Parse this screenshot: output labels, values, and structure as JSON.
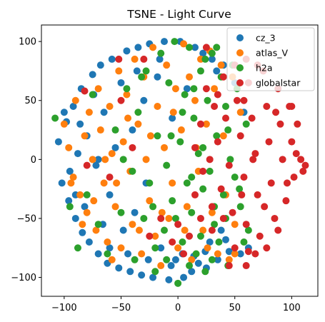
{
  "chart_data": {
    "type": "scatter",
    "title": "TSNE - Light Curve",
    "xlabel": "",
    "ylabel": "",
    "xlim": [
      -120,
      123
    ],
    "ylim": [
      -116,
      114
    ],
    "x_ticks": [
      -100,
      -50,
      0,
      50,
      100
    ],
    "y_ticks": [
      -100,
      -50,
      0,
      50,
      100
    ],
    "grid": false,
    "legend_position": "top-right",
    "series": [
      {
        "name": "cz_3",
        "color": "#1f77b4",
        "points": [
          [
            -105,
            15
          ],
          [
            -102,
            -20
          ],
          [
            -98,
            32
          ],
          [
            -96,
            -35
          ],
          [
            -92,
            45
          ],
          [
            -90,
            -50
          ],
          [
            -88,
            5
          ],
          [
            -85,
            60
          ],
          [
            -84,
            -62
          ],
          [
            -80,
            20
          ],
          [
            -78,
            -70
          ],
          [
            -75,
            72
          ],
          [
            -72,
            -5
          ],
          [
            -70,
            -80
          ],
          [
            -68,
            80
          ],
          [
            -65,
            40
          ],
          [
            -62,
            -88
          ],
          [
            -60,
            -30
          ],
          [
            -58,
            85
          ],
          [
            -55,
            10
          ],
          [
            -52,
            -92
          ],
          [
            -50,
            65
          ],
          [
            -48,
            -60
          ],
          [
            -45,
            92
          ],
          [
            -42,
            -95
          ],
          [
            -40,
            25
          ],
          [
            -38,
            -45
          ],
          [
            -35,
            95
          ],
          [
            -32,
            -98
          ],
          [
            -30,
            50
          ],
          [
            -28,
            -20
          ],
          [
            -25,
            98
          ],
          [
            -22,
            -100
          ],
          [
            -18,
            70
          ],
          [
            -15,
            -75
          ],
          [
            -12,
            100
          ],
          [
            -8,
            -102
          ],
          [
            -5,
            35
          ],
          [
            -2,
            -85
          ],
          [
            2,
            100
          ],
          [
            5,
            -100
          ],
          [
            8,
            60
          ],
          [
            12,
            -95
          ],
          [
            15,
            95
          ],
          [
            18,
            -88
          ],
          [
            22,
            90
          ],
          [
            25,
            -92
          ],
          [
            28,
            -70
          ],
          [
            30,
            85
          ],
          [
            35,
            -85
          ],
          [
            38,
            -60
          ],
          [
            40,
            80
          ],
          [
            45,
            -78
          ],
          [
            50,
            65
          ],
          [
            55,
            -80
          ],
          [
            58,
            40
          ],
          [
            62,
            -75
          ],
          [
            -95,
            -10
          ],
          [
            -86,
            30
          ],
          [
            -82,
            -40
          ],
          [
            -74,
            55
          ],
          [
            -66,
            -55
          ],
          [
            -44,
            -80
          ],
          [
            -36,
            75
          ],
          [
            -26,
            -85
          ],
          [
            -16,
            85
          ],
          [
            -6,
            -90
          ],
          [
            4,
            -80
          ],
          [
            14,
            -82
          ],
          [
            24,
            -78
          ],
          [
            34,
            75
          ],
          [
            42,
            -68
          ],
          [
            -100,
            40
          ],
          [
            -90,
            -30
          ],
          [
            -70,
            0
          ],
          [
            -60,
            -75
          ]
        ]
      },
      {
        "name": "atlas_V",
        "color": "#ff7f0e",
        "points": [
          [
            -100,
            30
          ],
          [
            -96,
            10
          ],
          [
            -92,
            -15
          ],
          [
            -90,
            50
          ],
          [
            -86,
            -30
          ],
          [
            -82,
            20
          ],
          [
            -80,
            -45
          ],
          [
            -78,
            40
          ],
          [
            -75,
            0
          ],
          [
            -72,
            -60
          ],
          [
            -70,
            60
          ],
          [
            -68,
            25
          ],
          [
            -65,
            -20
          ],
          [
            -62,
            -70
          ],
          [
            -60,
            45
          ],
          [
            -58,
            5
          ],
          [
            -55,
            -40
          ],
          [
            -52,
            75
          ],
          [
            -50,
            -75
          ],
          [
            -48,
            15
          ],
          [
            -45,
            55
          ],
          [
            -42,
            -10
          ],
          [
            -40,
            -55
          ],
          [
            -38,
            85
          ],
          [
            -35,
            30
          ],
          [
            -32,
            -80
          ],
          [
            -30,
            70
          ],
          [
            -28,
            0
          ],
          [
            -25,
            -35
          ],
          [
            -22,
            95
          ],
          [
            -20,
            -65
          ],
          [
            -18,
            45
          ],
          [
            -15,
            -90
          ],
          [
            -12,
            10
          ],
          [
            -10,
            80
          ],
          [
            -8,
            -50
          ],
          [
            -5,
            -20
          ],
          [
            -2,
            60
          ],
          [
            0,
            -75
          ],
          [
            3,
            25
          ],
          [
            5,
            98
          ],
          [
            8,
            -40
          ],
          [
            10,
            70
          ],
          [
            12,
            -85
          ],
          [
            15,
            50
          ],
          [
            18,
            -10
          ],
          [
            20,
            85
          ],
          [
            22,
            -60
          ],
          [
            25,
            30
          ],
          [
            28,
            92
          ],
          [
            30,
            -45
          ],
          [
            32,
            60
          ],
          [
            35,
            -80
          ],
          [
            38,
            80
          ],
          [
            40,
            20
          ],
          [
            42,
            -30
          ],
          [
            45,
            -85
          ],
          [
            48,
            70
          ],
          [
            50,
            -55
          ],
          [
            55,
            40
          ],
          [
            -84,
            -55
          ],
          [
            -74,
            -35
          ],
          [
            -64,
            0
          ],
          [
            -54,
            -20
          ],
          [
            -44,
            35
          ],
          [
            -34,
            -60
          ],
          [
            -24,
            20
          ],
          [
            -14,
            -45
          ],
          [
            -4,
            40
          ],
          [
            6,
            -60
          ],
          [
            16,
            10
          ],
          [
            26,
            -75
          ],
          [
            -94,
            -20
          ],
          [
            -58,
            -85
          ],
          [
            50,
            -80
          ]
        ]
      },
      {
        "name": "h2a",
        "color": "#2ca02c",
        "points": [
          [
            -108,
            35
          ],
          [
            -95,
            -40
          ],
          [
            -88,
            -75
          ],
          [
            -80,
            -30
          ],
          [
            -75,
            55
          ],
          [
            -70,
            -55
          ],
          [
            -62,
            -80
          ],
          [
            -55,
            25
          ],
          [
            -50,
            -45
          ],
          [
            -45,
            60
          ],
          [
            -40,
            -10
          ],
          [
            -38,
            -85
          ],
          [
            -35,
            40
          ],
          [
            -30,
            -50
          ],
          [
            -28,
            75
          ],
          [
            -25,
            -20
          ],
          [
            -20,
            -95
          ],
          [
            -18,
            20
          ],
          [
            -15,
            90
          ],
          [
            -12,
            -60
          ],
          [
            -10,
            -5
          ],
          [
            -8,
            65
          ],
          [
            -5,
            -35
          ],
          [
            -3,
            100
          ],
          [
            0,
            -105
          ],
          [
            2,
            15
          ],
          [
            4,
            -70
          ],
          [
            6,
            55
          ],
          [
            8,
            -20
          ],
          [
            10,
            95
          ],
          [
            12,
            -45
          ],
          [
            14,
            35
          ],
          [
            16,
            -80
          ],
          [
            18,
            5
          ],
          [
            20,
            75
          ],
          [
            22,
            -25
          ],
          [
            24,
            -95
          ],
          [
            26,
            50
          ],
          [
            28,
            -10
          ],
          [
            30,
            90
          ],
          [
            32,
            -55
          ],
          [
            34,
            20
          ],
          [
            36,
            -70
          ],
          [
            38,
            70
          ],
          [
            40,
            -30
          ],
          [
            42,
            45
          ],
          [
            44,
            -90
          ],
          [
            46,
            0
          ],
          [
            48,
            80
          ],
          [
            50,
            -15
          ],
          [
            52,
            60
          ],
          [
            55,
            -40
          ],
          [
            58,
            -70
          ],
          [
            60,
            30
          ],
          [
            62,
            -60
          ],
          [
            -20,
            -75
          ],
          [
            -10,
            -85
          ],
          [
            10,
            -90
          ],
          [
            20,
            -65
          ],
          [
            30,
            -85
          ],
          [
            -2,
            -50
          ],
          [
            12,
            -15
          ],
          [
            22,
            10
          ],
          [
            32,
            -40
          ],
          [
            42,
            -50
          ],
          [
            -6,
            20
          ],
          [
            4,
            40
          ],
          [
            14,
            60
          ],
          [
            24,
            85
          ],
          [
            34,
            95
          ],
          [
            44,
            25
          ],
          [
            54,
            -25
          ],
          [
            -48,
            0
          ],
          [
            -32,
            70
          ],
          [
            -22,
            -40
          ]
        ]
      },
      {
        "name": "globalstar",
        "color": "#d62728",
        "points": [
          [
            20,
            30
          ],
          [
            22,
            -10
          ],
          [
            25,
            60
          ],
          [
            28,
            0
          ],
          [
            30,
            -40
          ],
          [
            32,
            45
          ],
          [
            35,
            15
          ],
          [
            38,
            -25
          ],
          [
            40,
            70
          ],
          [
            42,
            35
          ],
          [
            45,
            -5
          ],
          [
            48,
            -45
          ],
          [
            50,
            80
          ],
          [
            52,
            50
          ],
          [
            55,
            20
          ],
          [
            58,
            -15
          ],
          [
            60,
            -55
          ],
          [
            62,
            65
          ],
          [
            65,
            35
          ],
          [
            68,
            5
          ],
          [
            70,
            -30
          ],
          [
            72,
            -65
          ],
          [
            75,
            75
          ],
          [
            78,
            45
          ],
          [
            80,
            15
          ],
          [
            82,
            -20
          ],
          [
            85,
            -50
          ],
          [
            88,
            60
          ],
          [
            90,
            30
          ],
          [
            92,
            0
          ],
          [
            95,
            -35
          ],
          [
            98,
            45
          ],
          [
            100,
            15
          ],
          [
            102,
            -15
          ],
          [
            105,
            30
          ],
          [
            108,
            0
          ],
          [
            110,
            -10
          ],
          [
            112,
            -5
          ],
          [
            68,
            -80
          ],
          [
            78,
            -75
          ],
          [
            88,
            -60
          ],
          [
            60,
            85
          ],
          [
            70,
            80
          ],
          [
            50,
            -75
          ],
          [
            40,
            -50
          ],
          [
            30,
            -60
          ],
          [
            20,
            -50
          ],
          [
            15,
            -30
          ],
          [
            15,
            10
          ],
          [
            10,
            -65
          ],
          [
            5,
            -80
          ],
          [
            0,
            -55
          ],
          [
            -5,
            -70
          ],
          [
            -15,
            -50
          ],
          [
            -25,
            -65
          ],
          [
            -40,
            10
          ],
          [
            -50,
            50
          ],
          [
            -60,
            -15
          ],
          [
            -80,
            -5
          ],
          [
            -82,
            58
          ],
          [
            -30,
            85
          ],
          [
            -52,
            85
          ],
          [
            60,
            -90
          ],
          [
            62,
            -78
          ],
          [
            45,
            -90
          ],
          [
            25,
            95
          ],
          [
            35,
            55
          ],
          [
            58,
            50
          ],
          [
            76,
            -40
          ],
          [
            86,
            40
          ],
          [
            96,
            -20
          ],
          [
            100,
            45
          ],
          [
            104,
            5
          ],
          [
            66,
            0
          ],
          [
            56,
            -30
          ]
        ]
      }
    ]
  }
}
